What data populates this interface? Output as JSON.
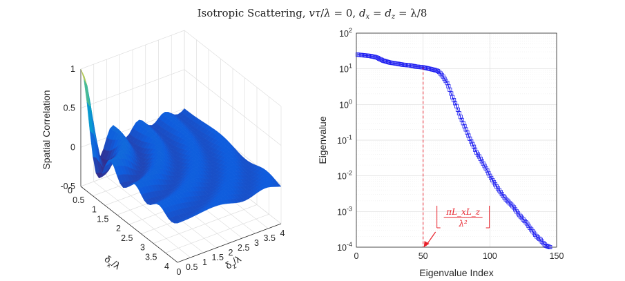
{
  "title": "Isotropic Scattering, vτ/λ = 0, d_x = d_z = λ/8",
  "title_parts": {
    "prefix": "Isotropic Scattering, ",
    "v": "v",
    "tau": "τ",
    "slash": "/",
    "lambda": "λ",
    "eq0": " = 0, ",
    "d1": "d",
    "sub1": "x",
    "eq": " = ",
    "d2": "d",
    "sub2": "z",
    "tail": " = λ/8"
  },
  "chart_data": [
    {
      "type": "surface",
      "zlabel": "Spatial Correlation",
      "xlabel": "δ_x/λ",
      "ylabel": "δ_z/λ",
      "xlabel_parts": {
        "delta": "δ",
        "sub": "x",
        "over": "/λ"
      },
      "ylabel_parts": {
        "delta": "δ",
        "sub": "z",
        "over": "/λ"
      },
      "xlim": [
        0,
        4
      ],
      "ylim": [
        0,
        4
      ],
      "zlim": [
        -0.5,
        1
      ],
      "x_ticks": [
        "0",
        "0.5",
        "1",
        "1.5",
        "2",
        "2.5",
        "3",
        "3.5",
        "4"
      ],
      "y_ticks": [
        "0",
        "0.5",
        "1",
        "1.5",
        "2",
        "2.5",
        "3",
        "3.5",
        "4"
      ],
      "z_ticks": [
        "-0.5",
        "0",
        "0.5",
        "1"
      ],
      "function": "sinc(2*pi*sqrt(dx^2+dz^2))",
      "colormap": "parula",
      "grid": true
    },
    {
      "type": "line",
      "xlabel": "Eigenvalue Index",
      "ylabel": "Eigenvalue",
      "xlim": [
        0,
        150
      ],
      "ylim": [
        0.0001,
        100
      ],
      "yscale": "log",
      "x_ticks": [
        "0",
        "50",
        "100",
        "150"
      ],
      "y_ticks": [
        {
          "base": "10",
          "exp": "2"
        },
        {
          "base": "10",
          "exp": "1"
        },
        {
          "base": "10",
          "exp": "0"
        },
        {
          "base": "10",
          "exp": "-1"
        },
        {
          "base": "10",
          "exp": "-2"
        },
        {
          "base": "10",
          "exp": "-3"
        },
        {
          "base": "10",
          "exp": "-4"
        }
      ],
      "grid": true,
      "series": [
        {
          "color": "#1f1ff0",
          "marker": "square",
          "x": [
            1,
            5,
            10,
            15,
            20,
            25,
            30,
            35,
            40,
            45,
            50,
            55,
            60,
            62,
            65,
            68,
            70,
            72,
            75,
            78,
            80,
            82,
            85,
            88,
            90,
            92,
            95,
            98,
            100,
            102,
            105,
            108,
            110,
            112,
            115,
            118,
            120,
            122,
            125,
            128,
            130,
            132,
            135,
            138,
            140,
            142,
            145
          ],
          "y": [
            25,
            24,
            23,
            21,
            17,
            15,
            14,
            13,
            12.5,
            11.5,
            11,
            10,
            9,
            8.2,
            6,
            4,
            2.6,
            1.6,
            0.9,
            0.45,
            0.3,
            0.2,
            0.11,
            0.065,
            0.045,
            0.035,
            0.022,
            0.014,
            0.01,
            0.0075,
            0.005,
            0.0035,
            0.0027,
            0.0022,
            0.0017,
            0.0013,
            0.001,
            0.0008,
            0.0006,
            0.00045,
            0.00035,
            0.00028,
            0.0002,
            0.00016,
            0.00013,
            0.00011,
            0.0001
          ]
        }
      ],
      "annotation": {
        "x": 50,
        "label_top": "πL_xL_z",
        "label_bottom": "λ²",
        "color": "#e8202a"
      }
    }
  ]
}
